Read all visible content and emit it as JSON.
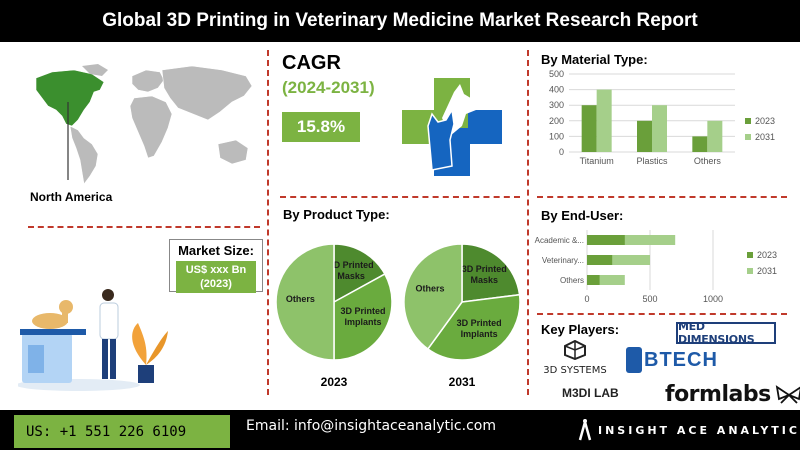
{
  "header": {
    "title": "Global 3D Printing in Veterinary Medicine Market Research Report"
  },
  "region": {
    "label": "North America"
  },
  "cagr": {
    "title": "CAGR",
    "period": "(2024-2031)",
    "value": "15.8%"
  },
  "market_size": {
    "title": "Market Size:",
    "line1": "US$ xxx Bn",
    "line2": "(2023)"
  },
  "product_type": {
    "title": "By Product Type:",
    "pies": [
      {
        "year": "2023",
        "slices": [
          {
            "label": "3D Printed Masks",
            "value": 17
          },
          {
            "label": "3D Printed Implants",
            "value": 33
          },
          {
            "label": "Others",
            "value": 50
          }
        ]
      },
      {
        "year": "2031",
        "slices": [
          {
            "label": "3D Printed Masks",
            "value": 23
          },
          {
            "label": "3D Printed Implants",
            "value": 37
          },
          {
            "label": "Others",
            "value": 40
          }
        ]
      }
    ]
  },
  "chart_data": [
    {
      "type": "bar",
      "title": "By Material Type:",
      "categories": [
        "Titanium",
        "Plastics",
        "Others"
      ],
      "series": [
        {
          "name": "2023",
          "values": [
            300,
            200,
            100
          ],
          "color": "#6a9f3a"
        },
        {
          "name": "2031",
          "values": [
            400,
            300,
            200
          ],
          "color": "#a5cf8a"
        }
      ],
      "ylim": [
        0,
        500
      ],
      "yticks": [
        0,
        100,
        200,
        300,
        400,
        500
      ],
      "grid": true,
      "legend": "right"
    },
    {
      "type": "bar",
      "orientation": "horizontal",
      "title": "By End-User:",
      "categories": [
        "Academic &...",
        "Veterinary...",
        "Others"
      ],
      "series": [
        {
          "name": "2023",
          "values": [
            300,
            200,
            100
          ],
          "color": "#6a9f3a"
        },
        {
          "name": "2031",
          "values": [
            700,
            500,
            300
          ],
          "color": "#a5cf8a"
        }
      ],
      "xlim": [
        0,
        1000
      ],
      "xticks": [
        0,
        500,
        1000
      ],
      "grid": true,
      "legend": "right"
    }
  ],
  "key_players": {
    "title": "Key Players:",
    "logos": [
      "MED DIMENSIONS",
      "3D SYSTEMS",
      "BTECH",
      "M3DI LAB",
      "formlabs"
    ]
  },
  "footer": {
    "phone": "US: +1 551 226 6109",
    "email": "Email: info@insightaceanalytic.com",
    "brand": "INSIGHT ACE ANALYTIC"
  },
  "colors": {
    "green": "#7cb342",
    "dark_green": "#5b8f2e",
    "blue": "#1565c0",
    "divider": "#c0392b"
  }
}
